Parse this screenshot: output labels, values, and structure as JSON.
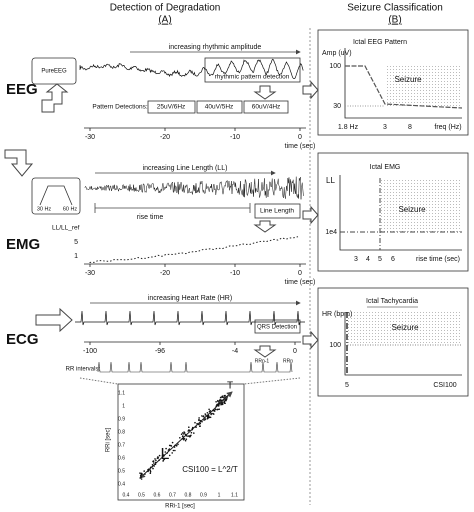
{
  "header": {
    "left_title": "Detection of Degradation",
    "left_label": "(A)",
    "right_title": "Seizure Classification",
    "right_label": "(B)"
  },
  "eeg": {
    "label": "EEG",
    "source": "PureEEG",
    "trend": "increasing rhythmic amplitude",
    "detector": "rhythmic pattern detection",
    "detections_label": "Pattern Detections:",
    "detections": [
      "25uV/6Hz",
      "40uV/5Hz",
      "60uV/4Hz"
    ],
    "time_ticks": [
      "-30",
      "-20",
      "-10",
      "0"
    ],
    "time_label": "time (sec)"
  },
  "eeg_classifier": {
    "title": "Ictal EEG Pattern",
    "y_label": "Amp (uV)",
    "y_ticks": [
      "100",
      "30"
    ],
    "region": "Seizure",
    "x_ticks": [
      "1.8 Hz",
      "3",
      "8"
    ],
    "x_label": "freq (Hz)"
  },
  "emg": {
    "label": "EMG",
    "filter": [
      "30 Hz",
      "60 Hz"
    ],
    "trend": "increasing Line Length (LL)",
    "rise": "rise time",
    "detector": "Line Length",
    "ratio_label": "LL/LL_ref",
    "ratio_ticks": [
      "5",
      "1"
    ],
    "time_ticks": [
      "-30",
      "-20",
      "-10",
      "0"
    ],
    "time_label": "time (sec)"
  },
  "emg_classifier": {
    "title": "Ictal EMG",
    "y_label": "LL",
    "y_tick": "1e4",
    "region": "Seizure",
    "x_ticks": [
      "3",
      "4",
      "5",
      "6"
    ],
    "x_label": "rise time (sec)"
  },
  "ecg": {
    "label": "ECG",
    "trend": "increasing Heart Rate (HR)",
    "detector": "QRS Detection",
    "time_ticks": [
      "-100",
      "-96",
      "-4",
      "0"
    ],
    "rr_label": "RR intervals:",
    "rr_marks": [
      "RRn-1",
      "RRn"
    ],
    "plot": {
      "y_label": "RRi [sec]",
      "x_label": "RRi-1 [sec]",
      "x_ticks": [
        "0.4",
        "0.5",
        "0.6",
        "0.7",
        "0.8",
        "0.9",
        "1",
        "1.1"
      ],
      "y_ticks": [
        "0.4",
        "0.5",
        "0.6",
        "0.7",
        "0.8",
        "0.9",
        "1",
        "1.1"
      ],
      "long": "L",
      "trans": "T",
      "formula": "CSI100 = L^2/T"
    }
  },
  "ecg_classifier": {
    "title": "Ictal Tachycardia",
    "y_label": "HR (bpm)",
    "y_tick": "100",
    "region": "Seizure",
    "x_tick": "5",
    "x_label": "CSI100"
  }
}
